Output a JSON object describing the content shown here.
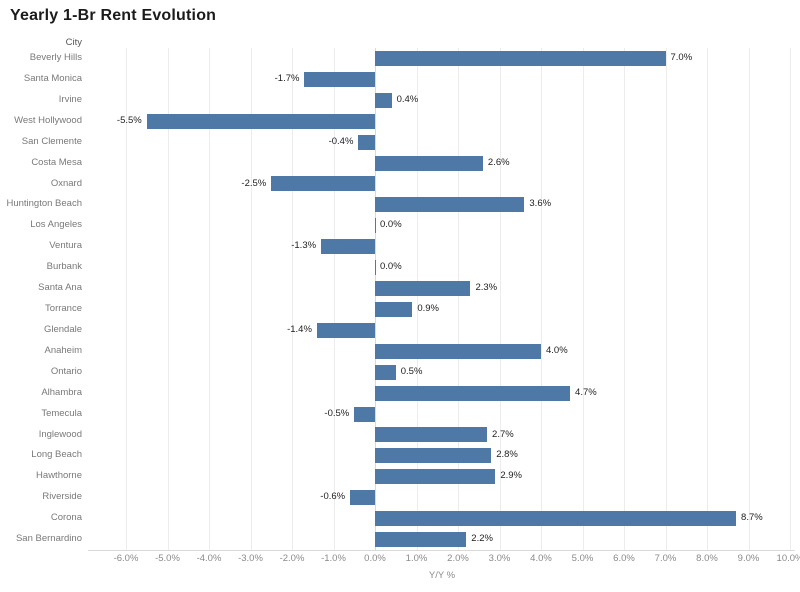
{
  "title": "Yearly 1-Br Rent Evolution",
  "columns": {
    "city_header": "City"
  },
  "axis": {
    "title": "Y/Y %",
    "min": -6,
    "max": 10,
    "tick_values": [
      -6,
      -5,
      -4,
      -3,
      -2,
      -1,
      0,
      1,
      2,
      3,
      4,
      5,
      6,
      7,
      8,
      9,
      10
    ],
    "tick_labels": [
      "-6.0%",
      "-5.0%",
      "-4.0%",
      "-3.0%",
      "-2.0%",
      "-1.0%",
      "0.0%",
      "1.0%",
      "2.0%",
      "3.0%",
      "4.0%",
      "5.0%",
      "6.0%",
      "7.0%",
      "8.0%",
      "9.0%",
      "10.0%"
    ]
  },
  "colors": {
    "bar": "#4e79a7",
    "gridline": "#ececec",
    "zero_line": "#d9d9d9",
    "axis_line": "#d9d9d9",
    "value_text": "#1e1e1e",
    "muted_text": "#797979",
    "title_text": "#1b1b1b"
  },
  "chart_data": {
    "type": "bar",
    "orientation": "horizontal",
    "title": "Yearly 1-Br Rent Evolution",
    "xlabel": "Y/Y %",
    "ylabel": "City",
    "xlim": [
      -6,
      10
    ],
    "grid": true,
    "legend": false,
    "categories": [
      "Beverly Hills",
      "Santa Monica",
      "Irvine",
      "West Hollywood",
      "San Clemente",
      "Costa Mesa",
      "Oxnard",
      "Huntington Beach",
      "Los Angeles",
      "Ventura",
      "Burbank",
      "Santa Ana",
      "Torrance",
      "Glendale",
      "Anaheim",
      "Ontario",
      "Alhambra",
      "Temecula",
      "Inglewood",
      "Long Beach",
      "Hawthorne",
      "Riverside",
      "Corona",
      "San Bernardino"
    ],
    "values": [
      7.0,
      -1.7,
      0.4,
      -5.5,
      -0.4,
      2.6,
      -2.5,
      3.6,
      0.0,
      -1.3,
      0.0,
      2.3,
      0.9,
      -1.4,
      4.0,
      0.5,
      4.7,
      -0.5,
      2.7,
      2.8,
      2.9,
      -0.6,
      8.7,
      2.2
    ],
    "value_labels": [
      "7.0%",
      "-1.7%",
      "0.4%",
      "-5.5%",
      "-0.4%",
      "2.6%",
      "-2.5%",
      "3.6%",
      "0.0%",
      "-1.3%",
      "0.0%",
      "2.3%",
      "0.9%",
      "-1.4%",
      "4.0%",
      "0.5%",
      "4.7%",
      "-0.5%",
      "2.7%",
      "2.8%",
      "2.9%",
      "-0.6%",
      "8.7%",
      "2.2%"
    ]
  }
}
